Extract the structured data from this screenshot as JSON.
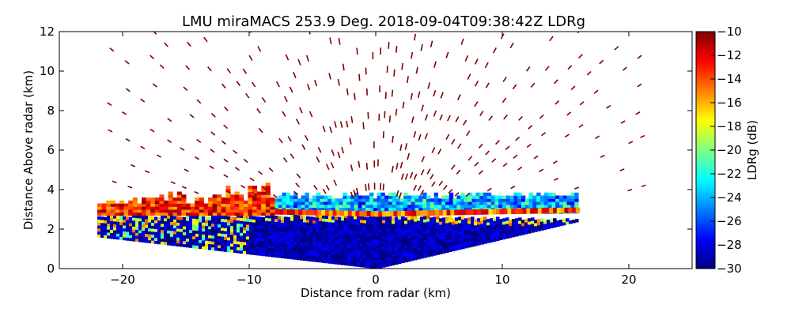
{
  "chart_data": {
    "type": "heatmap",
    "title": "LMU miraMACS 253.9 Deg. 2018-09-04T09:38:42Z  LDRg",
    "xlabel": "Distance from radar (km)",
    "ylabel": "Distance Above radar  (km)",
    "xlim": [
      -25,
      25
    ],
    "ylim": [
      0,
      12
    ],
    "xticks": [
      -20,
      -10,
      0,
      10,
      20
    ],
    "xtick_labels": [
      "−20",
      "−10",
      "0",
      "10",
      "20"
    ],
    "yticks": [
      0,
      2,
      4,
      6,
      8,
      10,
      12
    ],
    "ytick_labels": [
      "0",
      "2",
      "4",
      "6",
      "8",
      "10",
      "12"
    ],
    "grid": false,
    "colorbar": {
      "label": "LDRg (dB)",
      "range": [
        -30,
        -10
      ],
      "ticks": [
        -10,
        -12,
        -14,
        -16,
        -18,
        -20,
        -22,
        -24,
        -26,
        -28,
        -30
      ],
      "tick_labels": [
        "−10",
        "−12",
        "−14",
        "−16",
        "−18",
        "−20",
        "−22",
        "−24",
        "−26",
        "−28",
        "−30"
      ],
      "colormap": "jet"
    },
    "regions": [
      {
        "name": "low-level-echo",
        "value_db": -29,
        "x": [
          -22,
          16
        ],
        "y": [
          0,
          2.6
        ]
      },
      {
        "name": "melting-layer",
        "value_db": -14,
        "x": [
          -22,
          16
        ],
        "y": [
          2.5,
          3.0
        ]
      },
      {
        "name": "upper-cloud-band",
        "value_db": -23,
        "x": [
          -8,
          16
        ],
        "y": [
          2.8,
          3.8
        ]
      },
      {
        "name": "sparse-echo-above",
        "value_db": -10,
        "x": [
          -21,
          21
        ],
        "y": [
          3.5,
          12
        ]
      }
    ]
  }
}
